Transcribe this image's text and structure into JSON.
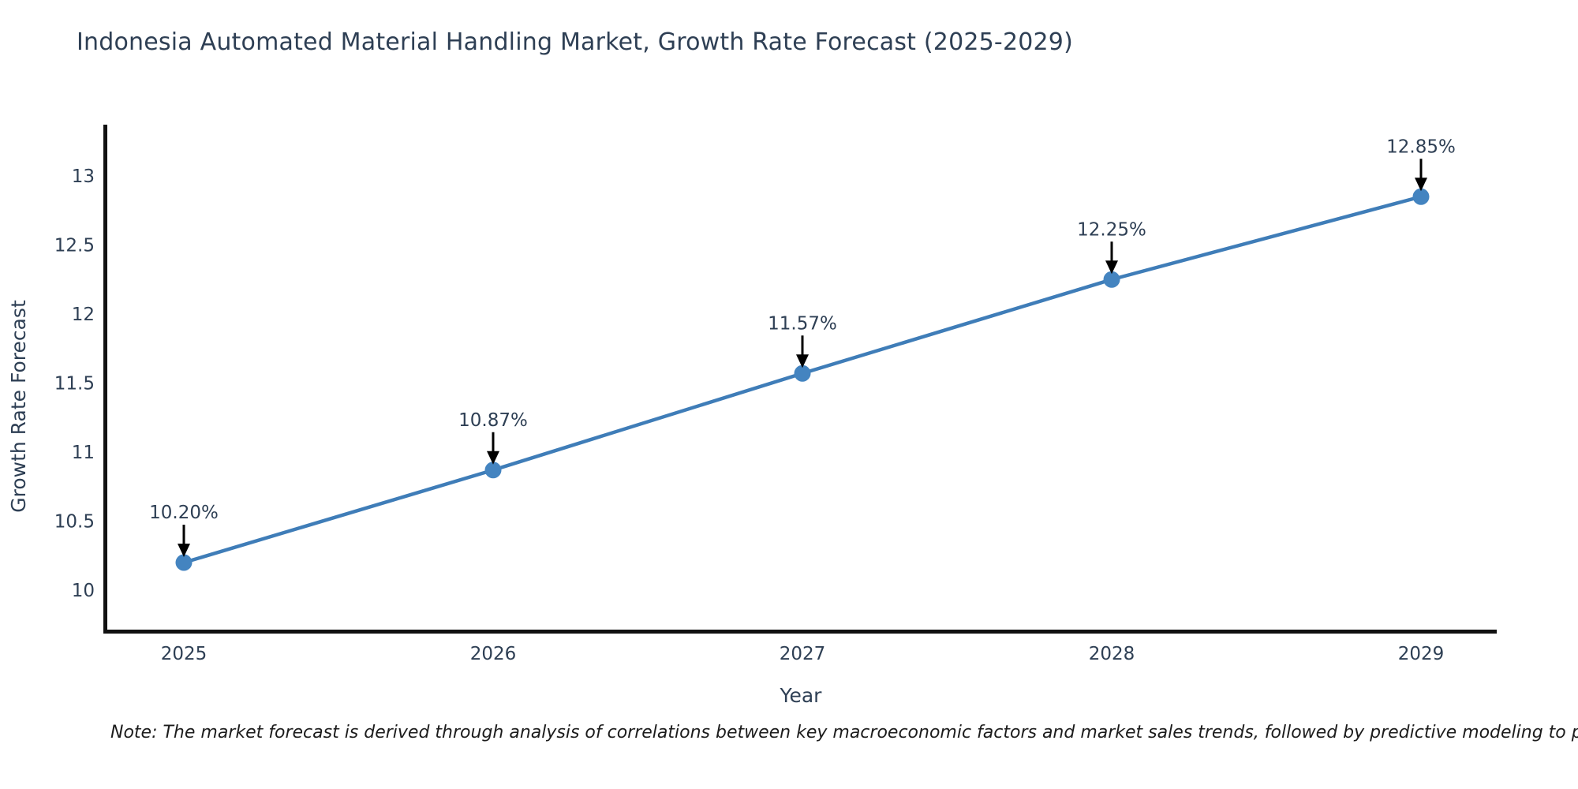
{
  "title": "Indonesia Automated Material Handling Market, Growth Rate Forecast (2025-2029)",
  "note": "Note: The market forecast is derived through analysis of correlations between key macroeconomic factors and market sales trends, followed by predictive modeling to project future sal",
  "chart_data": {
    "type": "line",
    "title": "Indonesia Automated Material Handling Market, Growth Rate Forecast (2025-2029)",
    "xlabel": "Year",
    "ylabel": "Growth Rate Forecast",
    "categories": [
      "2025",
      "2026",
      "2027",
      "2028",
      "2029"
    ],
    "x": [
      2025,
      2026,
      2027,
      2028,
      2029
    ],
    "values": [
      10.2,
      10.87,
      11.57,
      12.25,
      12.85
    ],
    "point_labels": [
      "10.20%",
      "10.87%",
      "11.57%",
      "12.25%",
      "12.85%"
    ],
    "ytick_values": [
      10,
      10.5,
      11,
      11.5,
      12,
      12.5,
      13
    ],
    "ytick_labels": [
      "10",
      "10.5",
      "11",
      "11.5",
      "12",
      "12.5",
      "13"
    ],
    "ylim": [
      9.7,
      13.37
    ],
    "grid": false,
    "legend_position": "none",
    "marker_style": "circle",
    "annotation_arrow": "down",
    "colors": {
      "line": "#3f7db8",
      "marker": "#4484c0",
      "arrow": "#000000",
      "text": "#2e3f54",
      "spine": "#111111",
      "note_text": "#1c1c1c",
      "background": "#ffffff"
    }
  }
}
